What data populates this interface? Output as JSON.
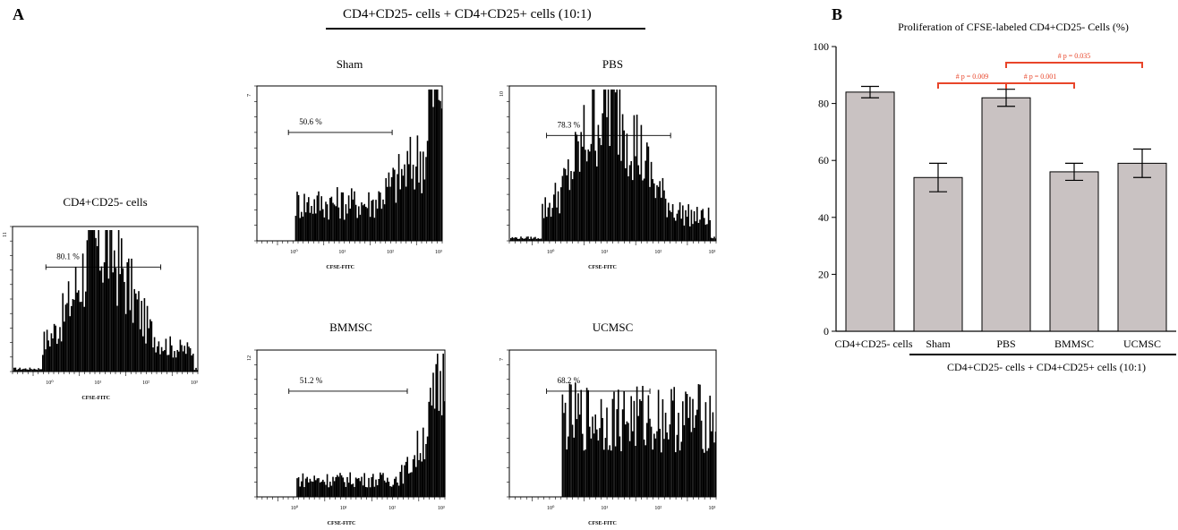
{
  "panel_a": {
    "letter": "A",
    "group_header": "CD4+CD25- cells + CD4+CD25+ cells (10:1)",
    "histograms": [
      {
        "id": "control",
        "title": "CD4+CD25- cells",
        "percent": "80.1 %",
        "ymax_label": "11",
        "xlabel": "CFSE-FITC",
        "ticks": [
          "10⁰",
          "10¹",
          "10²",
          "10³"
        ],
        "profile": "bell"
      },
      {
        "id": "sham",
        "title": "Sham",
        "percent": "50.6 %",
        "ymax_label": "7",
        "xlabel": "CFSE-FITC",
        "ticks": [
          "10⁰",
          "10¹",
          "10²",
          "10³"
        ],
        "profile": "rightpeak"
      },
      {
        "id": "pbs",
        "title": "PBS",
        "percent": "78.3 %",
        "ymax_label": "10",
        "xlabel": "CFSE-FITC",
        "ticks": [
          "10⁰",
          "10¹",
          "10²",
          "10³"
        ],
        "profile": "bell"
      },
      {
        "id": "bmmsc",
        "title": "BMMSC",
        "percent": "51.2 %",
        "ymax_label": "12",
        "xlabel": "CFSE-FITC",
        "ticks": [
          "10⁰",
          "10¹",
          "10²",
          "10³"
        ],
        "profile": "rightsteep"
      },
      {
        "id": "ucmsc",
        "title": "UCMSC",
        "percent": "68.2 %",
        "ymax_label": "7",
        "xlabel": "CFSE-FITC",
        "ticks": [
          "10⁰",
          "10¹",
          "10²",
          "10³"
        ],
        "profile": "flat"
      }
    ]
  },
  "panel_b": {
    "letter": "B",
    "bracket_label": "CD4+CD25- cells + CD4+CD25+ cells  (10:1)",
    "significance": [
      {
        "label": "# p = 0.009",
        "from": 1,
        "to": 2,
        "level": 1
      },
      {
        "label": "# p = 0.001",
        "from": 2,
        "to": 3,
        "level": 1
      },
      {
        "label": "# p = 0.035",
        "from": 2,
        "to": 4,
        "level": 2
      }
    ],
    "sig_color": "#e8452a"
  },
  "chart_data": {
    "type": "bar",
    "title": "Proliferation of CFSE-labeled CD4+CD25- Cells (%)",
    "categories": [
      "CD4+CD25- cells",
      "Sham",
      "PBS",
      "BMMSC",
      "UCMSC"
    ],
    "values": [
      84,
      54,
      82,
      56,
      59
    ],
    "errors": [
      2,
      5,
      3,
      3,
      5
    ],
    "ylim": [
      0,
      100
    ],
    "yticks": [
      0,
      20,
      40,
      60,
      80,
      100
    ],
    "bar_color": "#c9c2c2"
  }
}
